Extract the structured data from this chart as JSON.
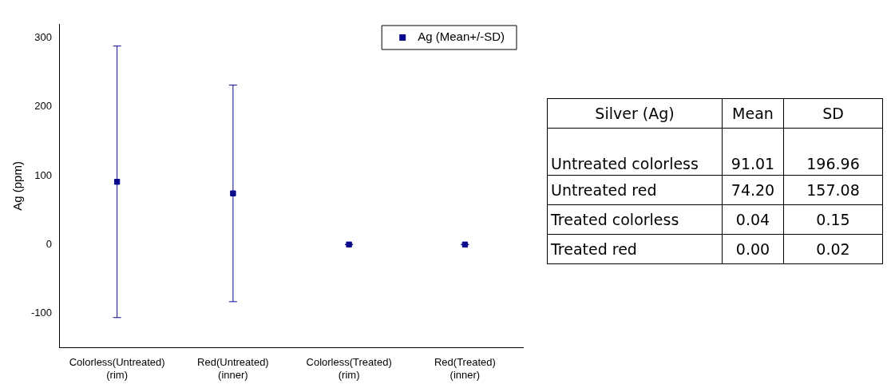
{
  "chart_data": [
    {
      "type": "scatter",
      "ylabel": "Ag (ppm)",
      "categories": [
        "Colorless(Untreated)\n(rim)",
        "Red(Untreated)\n(inner)",
        "Colorless(Treated)\n(rim)",
        "Red(Treated)\n(inner)"
      ],
      "series": [
        {
          "name": "Ag (Mean+/-SD)",
          "color": "#0a0a8c",
          "values": [
            91.01,
            74.2,
            0.04,
            0.0
          ],
          "errors": [
            196.96,
            157.08,
            0.15,
            0.02
          ]
        }
      ],
      "ylim": [
        -150,
        320
      ],
      "yticks": [
        -100,
        0,
        100,
        200,
        300
      ],
      "grid": false,
      "legend": "top right",
      "marker": "square"
    },
    {
      "type": "other",
      "title": "Silver (Ag)",
      "categories": [
        "Untreated colorless",
        "Untreated red",
        "Treated colorless",
        "Treated red"
      ],
      "series": [
        {
          "name": "Mean",
          "values": [
            91.01,
            74.2,
            0.04,
            0.0
          ],
          "value_labels": [
            "91.01",
            "74.20",
            "0.04",
            "0.00"
          ]
        },
        {
          "name": "SD",
          "values": [
            196.96,
            157.08,
            0.15,
            0.02
          ],
          "value_labels": [
            "196.96",
            "157.08",
            "0.15",
            "0.02"
          ]
        }
      ],
      "data_labels": true
    }
  ]
}
